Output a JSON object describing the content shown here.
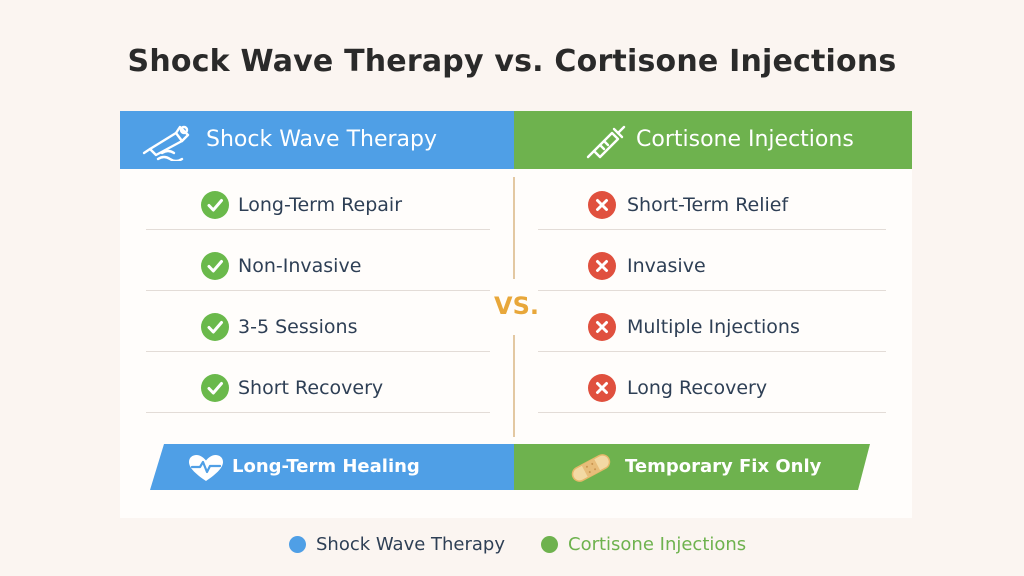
{
  "title": "Shock Wave Therapy vs. Cortisone Injections",
  "colors": {
    "shockwave": "#4f9fe6",
    "cortisone": "#6eb24e",
    "check": "#6ab94b",
    "cross": "#e0503e",
    "vs": "#e8a73a"
  },
  "left": {
    "header": "Shock Wave Therapy",
    "icon": "shockwave-device-icon",
    "items": [
      {
        "label": "Long-Term Repair",
        "icon": "check-icon"
      },
      {
        "label": "Non-Invasive",
        "icon": "check-icon"
      },
      {
        "label": "3-5 Sessions",
        "icon": "check-icon"
      },
      {
        "label": "Short Recovery",
        "icon": "check-icon"
      }
    ],
    "footer": "Long-Term Healing",
    "footer_icon": "heart-pulse-icon"
  },
  "right": {
    "header": "Cortisone Injections",
    "icon": "syringe-icon",
    "items": [
      {
        "label": "Short-Term Relief",
        "icon": "cross-icon"
      },
      {
        "label": "Invasive",
        "icon": "cross-icon"
      },
      {
        "label": "Multiple Injections",
        "icon": "cross-icon"
      },
      {
        "label": "Long Recovery",
        "icon": "cross-icon"
      }
    ],
    "footer": "Temporary Fix Only",
    "footer_icon": "bandage-icon"
  },
  "vs_label": "VS.",
  "legend": [
    {
      "label": "Shock Wave Therapy",
      "color": "#4f9fe6"
    },
    {
      "label": "Cortisone Injections",
      "color": "#6eb24e"
    }
  ]
}
